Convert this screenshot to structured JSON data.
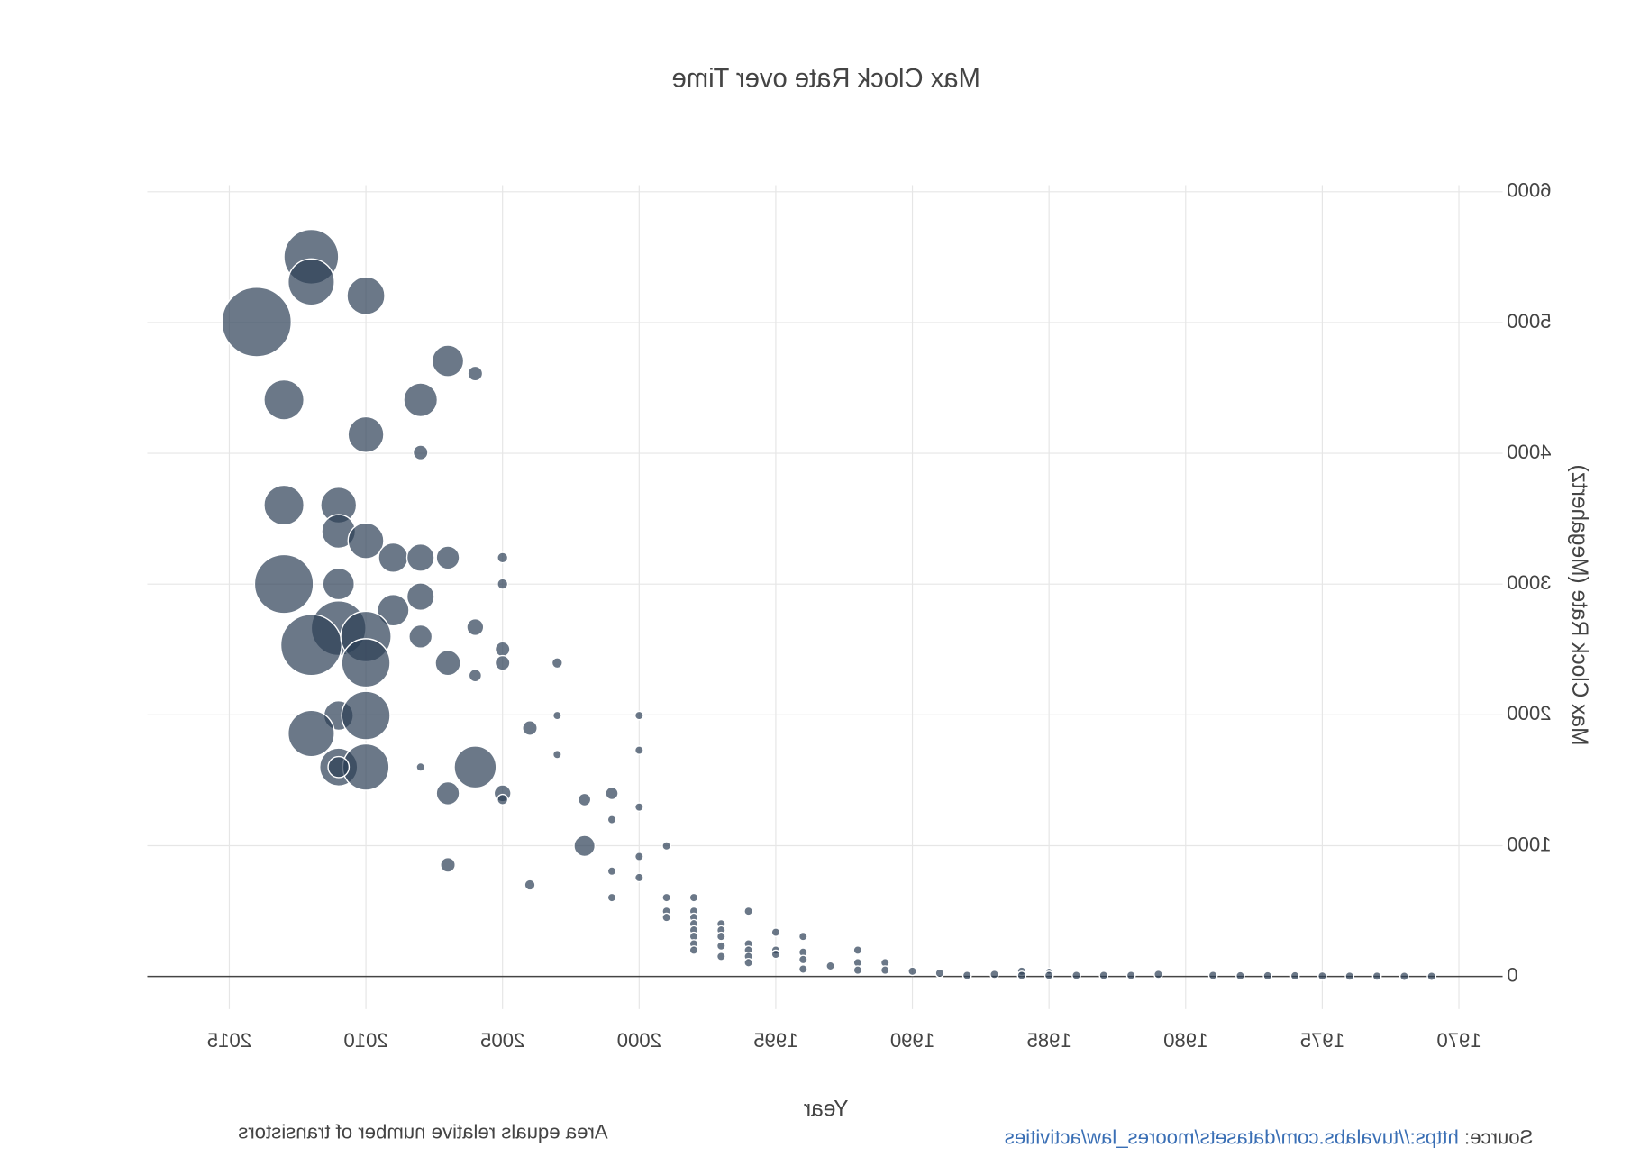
{
  "chart_data": {
    "type": "bubble",
    "title": "Max Clock Rate over Time",
    "x_label": "Year",
    "y_label": "Max Clock Rate (Megahertz)",
    "annotation": "Area equals relative number of transistors",
    "source_label": "Source:",
    "source_link": "https://tuvalabs.com/datasets/moores_law/activities",
    "color": "#2c3e55",
    "grid": true,
    "xlim": [
      1968.4,
      2018
    ],
    "xticks": [
      1970,
      1975,
      1980,
      1985,
      1990,
      1995,
      2000,
      2005,
      2010,
      2015
    ],
    "ylim": [
      -250,
      6050
    ],
    "yticks": [
      0,
      1000,
      2000,
      3000,
      4000,
      5000,
      6000
    ],
    "x": [
      2014,
      2012,
      2012,
      2010,
      2007,
      2006,
      2013,
      2008,
      2010,
      2008,
      2013,
      2011,
      2011,
      2010,
      2009,
      2008,
      2007,
      2005,
      2005,
      2013,
      2011,
      2008,
      2009,
      2011,
      2012,
      2010,
      2010,
      2008,
      2006,
      2007,
      2006,
      2005,
      2005,
      2003,
      2011,
      2010,
      2012,
      2004,
      2003,
      2000,
      2003,
      2000,
      2011,
      2010,
      2011,
      2008,
      2006,
      2007,
      2005,
      2005,
      2002,
      2001,
      2001,
      2000,
      2002,
      1999,
      2000,
      2007,
      2001,
      2000,
      2004,
      2001,
      1999,
      1999,
      1999,
      1998,
      1998,
      1998,
      1998,
      1998,
      1998,
      1998,
      1998,
      1997,
      1997,
      1997,
      1997,
      1997,
      1996,
      1996,
      1996,
      1996,
      1996,
      1995,
      1995,
      1995,
      1994,
      1994,
      1994,
      1994,
      1993,
      1992,
      1992,
      1992,
      1991,
      1991,
      1990,
      1989,
      1988,
      1987,
      1986,
      1986,
      1985,
      1985,
      1984,
      1983,
      1982,
      1981,
      1979,
      1978,
      1977,
      1976,
      1975,
      1974,
      1973,
      1972,
      1971
    ],
    "values": [
      5004,
      5503,
      5310,
      5205,
      4706,
      4610,
      4409,
      4409,
      4143,
      4006,
      3604,
      3604,
      3403,
      3331,
      3202,
      3202,
      3202,
      3202,
      3001,
      3001,
      3001,
      2904,
      2800,
      2663,
      2534,
      2599,
      2397,
      2599,
      2671,
      2397,
      2301,
      2502,
      2397,
      2397,
      1995,
      1995,
      1858,
      1899,
      1995,
      1995,
      1697,
      1730,
      1601,
      1601,
      1601,
      1601,
      1601,
      1400,
      1400,
      1352,
      1352,
      1400,
      1199,
      1295,
      998,
      998,
      917,
      853,
      805,
      756,
      700,
      603,
      603,
      499,
      451,
      603,
      499,
      451,
      402,
      354,
      306,
      249,
      201,
      402,
      354,
      306,
      233,
      153,
      499,
      249,
      201,
      153,
      105,
      338,
      201,
      169,
      306,
      185,
      129,
      56,
      80,
      201,
      105,
      48,
      105,
      48,
      40,
      25,
      8,
      16,
      40,
      8,
      40,
      8,
      8,
      8,
      8,
      16,
      8,
      5,
      5,
      5,
      3,
      2,
      2,
      1,
      1
    ],
    "sizes": [
      1089,
      676,
      484,
      324,
      225,
      49,
      361,
      256,
      289,
      49,
      361,
      289,
      256,
      289,
      196,
      169,
      121,
      25,
      25,
      784,
      225,
      169,
      225,
      676,
      841,
      576,
      529,
      121,
      64,
      144,
      36,
      49,
      49,
      25,
      196,
      529,
      484,
      49,
      16,
      16,
      16,
      16,
      324,
      484,
      100,
      16,
      400,
      121,
      64,
      25,
      36,
      36,
      16,
      16,
      100,
      16,
      16,
      49,
      16,
      16,
      25,
      16,
      16,
      16,
      16,
      16,
      16,
      16,
      16,
      16,
      16,
      16,
      16,
      16,
      16,
      16,
      16,
      16,
      16,
      16,
      16,
      16,
      16,
      16,
      16,
      16,
      16,
      16,
      16,
      16,
      16,
      16,
      16,
      16,
      16,
      16,
      16,
      16,
      16,
      16,
      16,
      16,
      9,
      16,
      16,
      16,
      16,
      16,
      16,
      16,
      16,
      16,
      16,
      16,
      16,
      16,
      16
    ]
  }
}
